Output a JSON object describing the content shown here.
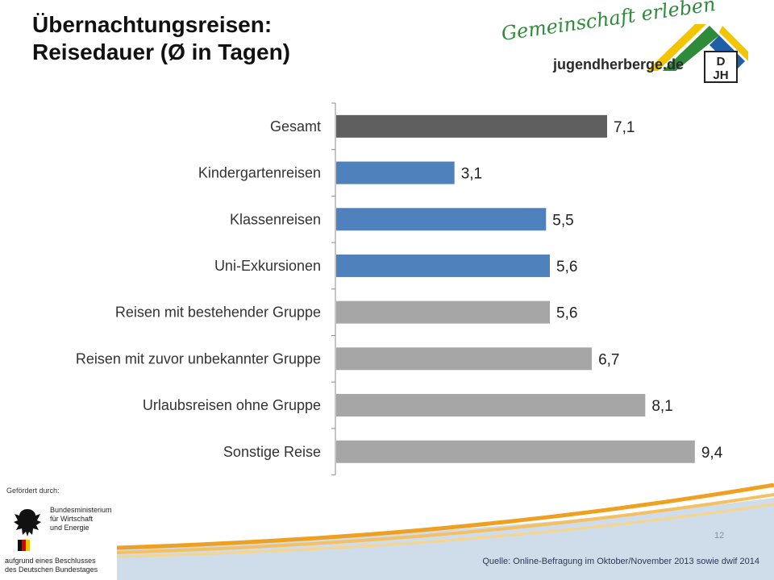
{
  "title": {
    "line1": "Übernachtungsreisen:",
    "line2": "Reisedauer (Ø in Tagen)"
  },
  "logo": {
    "slogan": "Gemeinschaft erleben",
    "site": "jugendherberge.de",
    "badge_top": "D",
    "badge_bottom": "JH",
    "colors": [
      "#f2c500",
      "#2e8b3a",
      "#1e5fa8"
    ]
  },
  "chart_data": {
    "type": "bar",
    "orientation": "horizontal",
    "title": "",
    "xlabel": "",
    "ylabel": "",
    "xlim": [
      0,
      10
    ],
    "grid": false,
    "legend": "none",
    "categories": [
      "Gesamt",
      "Kindergartenreisen",
      "Klassenreisen",
      "Uni-Exkursionen",
      "Reisen mit bestehender Gruppe",
      "Reisen mit zuvor unbekannter Gruppe",
      "Urlaubsreisen ohne Gruppe",
      "Sonstige Reise"
    ],
    "values": [
      7.1,
      3.1,
      5.5,
      5.6,
      5.6,
      6.7,
      8.1,
      9.4
    ],
    "value_labels": [
      "7,1",
      "3,1",
      "5,5",
      "5,6",
      "5,6",
      "6,7",
      "8,1",
      "9,4"
    ],
    "bar_colors": [
      "#5f5f5f",
      "#4f81bd",
      "#4f81bd",
      "#4f81bd",
      "#a6a6a6",
      "#a6a6a6",
      "#a6a6a6",
      "#a6a6a6"
    ]
  },
  "funding": {
    "label": "Gefördert durch:",
    "ministry_lines": [
      "Bundesministerium",
      "für Wirtschaft",
      "und Energie"
    ],
    "decision_lines": [
      "aufgrund eines Beschlusses",
      "des Deutschen Bundestages"
    ]
  },
  "footer": {
    "page_number": "12",
    "source": "Quelle: Online-Befragung im Oktober/November 2013 sowie dwif 2014"
  }
}
